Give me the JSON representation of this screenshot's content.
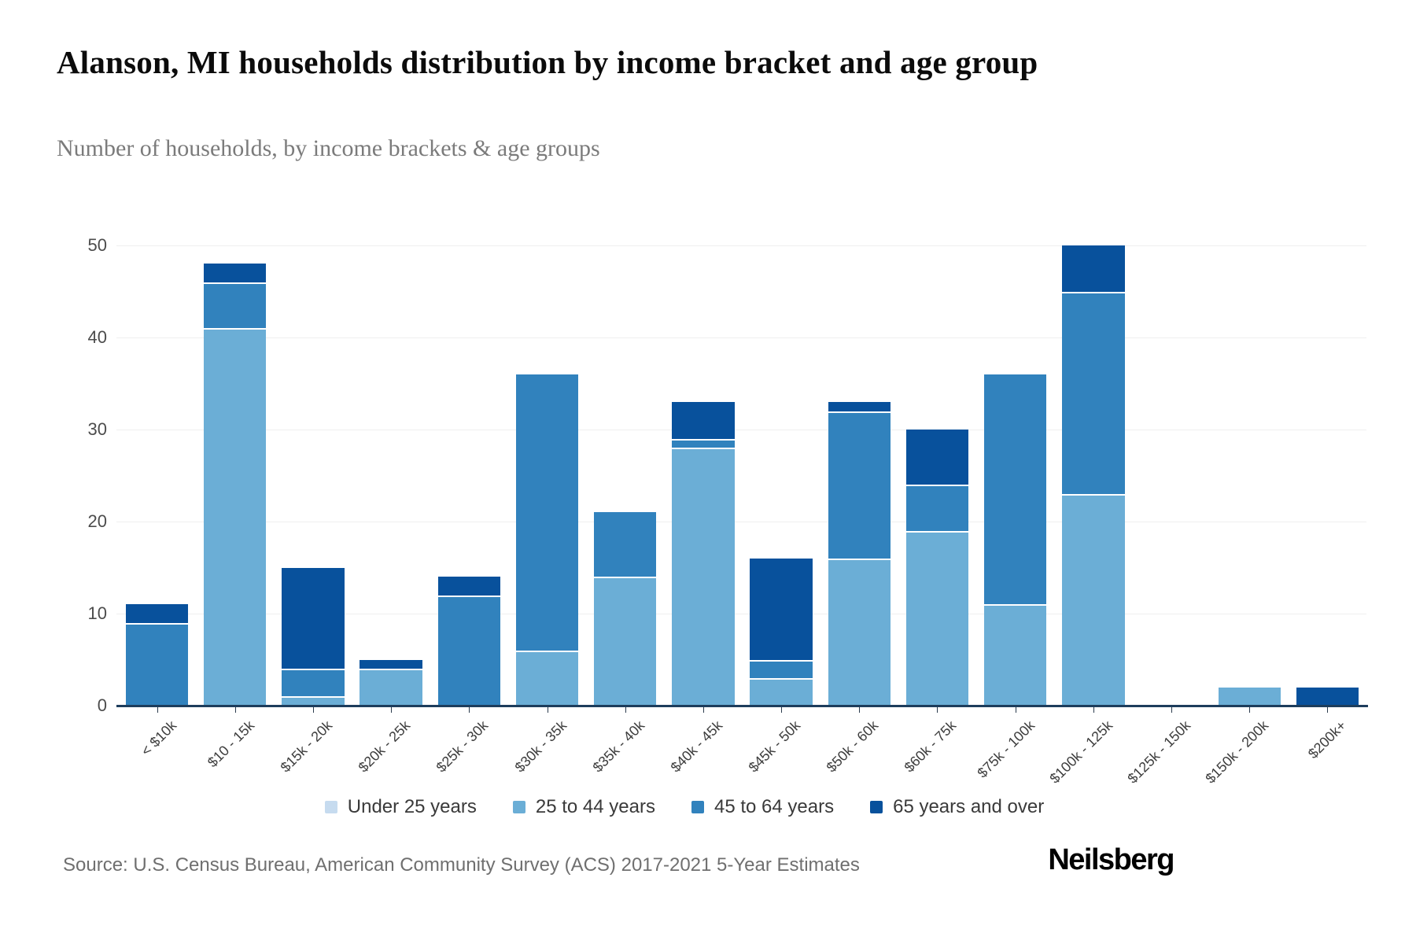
{
  "header": {
    "title": "Alanson, MI households distribution by income bracket and age group",
    "subtitle": "Number of households, by income brackets & age groups"
  },
  "chart_data": {
    "type": "bar",
    "stacked": true,
    "title": "Alanson, MI households distribution by income bracket and age group",
    "xlabel": "",
    "ylabel": "",
    "ylim": [
      0,
      50
    ],
    "ytick_step": 10,
    "grid": true,
    "legend_position": "bottom",
    "categories": [
      "< $10k",
      "$10 - 15k",
      "$15k - 20k",
      "$20k - 25k",
      "$25k - 30k",
      "$30k - 35k",
      "$35k - 40k",
      "$40k - 45k",
      "$45k - 50k",
      "$50k - 60k",
      "$60k - 75k",
      "$75k - 100k",
      "$100k - 125k",
      "$125k - 150k",
      "$150k - 200k",
      "$200k+"
    ],
    "series": [
      {
        "name": "Under 25 years",
        "color": "#c6dbef",
        "values": [
          0,
          0,
          0,
          0,
          0,
          0,
          0,
          0,
          0,
          0,
          0,
          0,
          0,
          0,
          0,
          0
        ]
      },
      {
        "name": "25 to 44 years",
        "color": "#6baed6",
        "values": [
          0,
          41,
          1,
          4,
          0,
          6,
          14,
          28,
          3,
          16,
          19,
          11,
          23,
          0,
          2,
          0
        ]
      },
      {
        "name": "45 to 64 years",
        "color": "#3182bd",
        "values": [
          9,
          5,
          3,
          0,
          12,
          30,
          7,
          1,
          2,
          16,
          5,
          25,
          22,
          0,
          0,
          0
        ]
      },
      {
        "name": "65 years and over",
        "color": "#08519c",
        "values": [
          2,
          2,
          11,
          1,
          2,
          0,
          0,
          4,
          11,
          1,
          6,
          0,
          5,
          0,
          0,
          2
        ]
      }
    ],
    "totals": [
      11,
      48,
      15,
      5,
      14,
      36,
      21,
      33,
      16,
      33,
      30,
      36,
      50,
      0,
      2,
      2
    ]
  },
  "footer": {
    "source": "Source: U.S. Census Bureau, American Community Survey (ACS) 2017-2021 5-Year Estimates",
    "logo": "Neilsberg"
  }
}
